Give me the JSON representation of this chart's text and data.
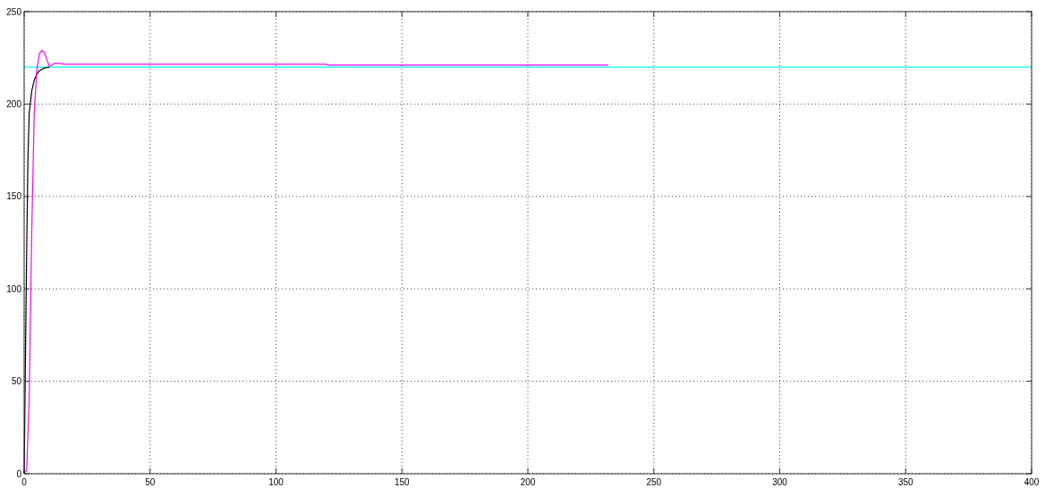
{
  "chart_data": {
    "type": "line",
    "xlim": [
      0,
      400
    ],
    "ylim": [
      0,
      250
    ],
    "xticks": [
      0,
      50,
      100,
      150,
      200,
      250,
      300,
      350,
      400
    ],
    "yticks": [
      0,
      50,
      100,
      150,
      200,
      250
    ],
    "grid": true,
    "series": [
      {
        "color": "#00ffff",
        "x": [
          0,
          400
        ],
        "values": [
          220,
          220
        ]
      },
      {
        "color": "#000000",
        "x": [
          0,
          0.5,
          1,
          1.5,
          2,
          3,
          4,
          5,
          6,
          8,
          10
        ],
        "values": [
          0,
          60,
          120,
          170,
          195,
          207,
          213,
          216,
          218,
          219.5,
          220
        ]
      },
      {
        "color": "#ff00ff",
        "x": [
          0,
          1,
          2,
          3,
          4,
          5,
          6,
          7,
          8,
          9,
          10,
          11,
          12,
          14,
          16,
          120,
          121,
          232
        ],
        "values": [
          0,
          2,
          40,
          130,
          195,
          218,
          227,
          229,
          228,
          224,
          220.5,
          221,
          222,
          222,
          221.5,
          221.5,
          221,
          221
        ]
      }
    ]
  }
}
